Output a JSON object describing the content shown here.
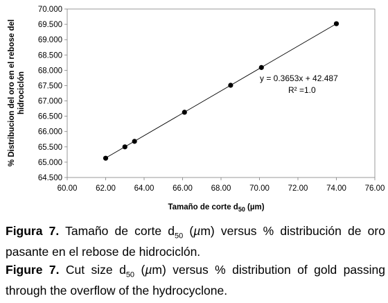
{
  "chart_data": {
    "type": "scatter",
    "xlabel": "Tamaño de corte d",
    "xlabel_sub": "50",
    "xlabel_unit": " (µm)",
    "ylabel_line1": "% Distribucion del oro en el rebose del",
    "ylabel_line2": "hidrociclón",
    "xlim": [
      60,
      76
    ],
    "ylim": [
      64.5,
      70
    ],
    "x_ticks": [
      "60.00",
      "62.00",
      "64.00",
      "66.00",
      "68.00",
      "70.00",
      "72.00",
      "74.00",
      "76.00"
    ],
    "y_ticks": [
      "64.500",
      "65.000",
      "65.500",
      "66.000",
      "66.500",
      "67.000",
      "67.500",
      "68.000",
      "68.500",
      "69.000",
      "69.500",
      "70.000"
    ],
    "points": [
      {
        "x": 62.0,
        "y": 65.13
      },
      {
        "x": 63.0,
        "y": 65.5
      },
      {
        "x": 63.5,
        "y": 65.68
      },
      {
        "x": 66.1,
        "y": 66.63
      },
      {
        "x": 68.5,
        "y": 67.51
      },
      {
        "x": 70.1,
        "y": 68.09
      },
      {
        "x": 74.0,
        "y": 69.52
      }
    ],
    "trendline": {
      "slope": 0.3653,
      "intercept": 42.487,
      "x_range": [
        62.0,
        74.0
      ]
    },
    "equation": "y = 0.3653x + 42.487",
    "r_squared": "R² =1.0",
    "marker_color": "#000000",
    "line_color": "#000000"
  },
  "captions": {
    "es": {
      "label": "Figura 7.",
      "text_1": " Tamaño de corte d",
      "sub": "50",
      "text_2": " (",
      "mu": "µ",
      "text_3": "m) versus % distribución de oro pasante en el rebose de hidrociclón."
    },
    "en": {
      "label": "Figure 7.",
      "text_1": " Cut size d",
      "sub": "50",
      "text_2": " (",
      "mu": "µ",
      "text_3": "m) versus % distribution of gold passing through the overflow of the hydrocyclone."
    }
  }
}
